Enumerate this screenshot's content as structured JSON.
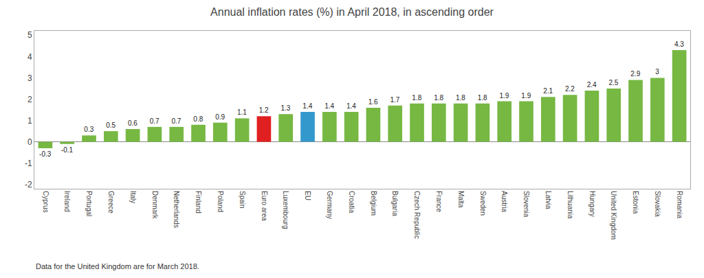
{
  "chart_data": {
    "type": "bar",
    "title": "Annual inflation rates (%) in April 2018, in ascending order",
    "annotations": [
      "Data for the United Kingdom are for March 2018."
    ],
    "categories": [
      "Cyprus",
      "Ireland",
      "Portugal",
      "Greece",
      "Italy",
      "Denmark",
      "Netherlands",
      "Finland",
      "Poland",
      "Spain",
      "Euro area",
      "Luxembourg",
      "EU",
      "Germany",
      "Croatia",
      "Belgium",
      "Bulgaria",
      "Czech Republic",
      "France",
      "Malta",
      "Sweden",
      "Austria",
      "Slovenia",
      "Latvia",
      "Lithuania",
      "Hungary",
      "United Kingdom",
      "Estonia",
      "Slovakia",
      "Romania"
    ],
    "values": [
      -0.3,
      -0.1,
      0.3,
      0.5,
      0.6,
      0.7,
      0.7,
      0.8,
      0.9,
      1.1,
      1.2,
      1.3,
      1.4,
      1.4,
      1.4,
      1.6,
      1.7,
      1.8,
      1.8,
      1.8,
      1.8,
      1.9,
      1.9,
      2.1,
      2.2,
      2.4,
      2.5,
      2.9,
      3.0,
      4.3
    ],
    "colors": [
      "#77b843",
      "#77b843",
      "#77b843",
      "#77b843",
      "#77b843",
      "#77b843",
      "#77b843",
      "#77b843",
      "#77b843",
      "#77b843",
      "#e02020",
      "#77b843",
      "#3399cc",
      "#77b843",
      "#77b843",
      "#77b843",
      "#77b843",
      "#77b843",
      "#77b843",
      "#77b843",
      "#77b843",
      "#77b843",
      "#77b843",
      "#77b843",
      "#77b843",
      "#77b843",
      "#77b843",
      "#77b843",
      "#77b843",
      "#77b843"
    ],
    "ylim": [
      -2.2,
      5.2
    ],
    "yticks": [
      -2,
      -1,
      0,
      1,
      2,
      3,
      4,
      5
    ],
    "grid": false,
    "data_labels": true
  }
}
